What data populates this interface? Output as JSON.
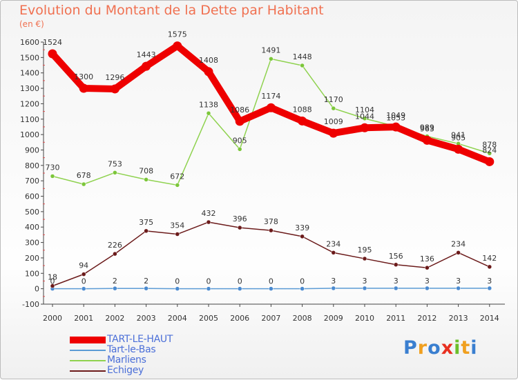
{
  "title": "Evolution du Montant de la Dette par Habitant",
  "subtitle": "(en €)",
  "chart_data": {
    "type": "line",
    "title": "Evolution du Montant de la Dette par Habitant",
    "subtitle": "(en €)",
    "x": [
      "2000",
      "2001",
      "2002",
      "2003",
      "2004",
      "2005",
      "2006",
      "2007",
      "2008",
      "2009",
      "2010",
      "2011",
      "2012",
      "2013",
      "2014"
    ],
    "ylim": [
      -100,
      1600
    ],
    "yticks": [
      -100,
      0,
      100,
      200,
      300,
      400,
      500,
      600,
      700,
      800,
      900,
      1000,
      1100,
      1200,
      1300,
      1400,
      1500,
      1600
    ],
    "grid": false,
    "legend_position": "bottom-left",
    "series": [
      {
        "name": "TART-LE-HAUT",
        "color": "#ee0000",
        "values": [
          1524,
          1300,
          1296,
          1443,
          1575,
          1408,
          1086,
          1174,
          1088,
          1009,
          1044,
          1049,
          963,
          905,
          824
        ]
      },
      {
        "name": "Tart-le-Bas",
        "color": "#5b9bd5",
        "values": [
          0,
          0,
          2,
          2,
          0,
          0,
          0,
          0,
          0,
          3,
          3,
          3,
          3,
          3,
          3
        ]
      },
      {
        "name": "Marliens",
        "color": "#8fd24f",
        "values": [
          730,
          678,
          753,
          708,
          672,
          1138,
          905,
          1491,
          1448,
          1170,
          1104,
          1053,
          989,
          941,
          878
        ]
      },
      {
        "name": "Echigey",
        "color": "#6b1a1a",
        "values": [
          18,
          94,
          226,
          375,
          354,
          432,
          396,
          378,
          339,
          234,
          195,
          156,
          136,
          234,
          142
        ]
      }
    ]
  },
  "logo": {
    "letters": [
      "P",
      "r",
      "o",
      "x",
      "i",
      "t",
      "i"
    ],
    "colors": [
      "#3a7fd0",
      "#f0a020",
      "#3a7fd0",
      "#e83020",
      "#6cbf2c",
      "#f0a020",
      "#3a7fd0"
    ]
  }
}
